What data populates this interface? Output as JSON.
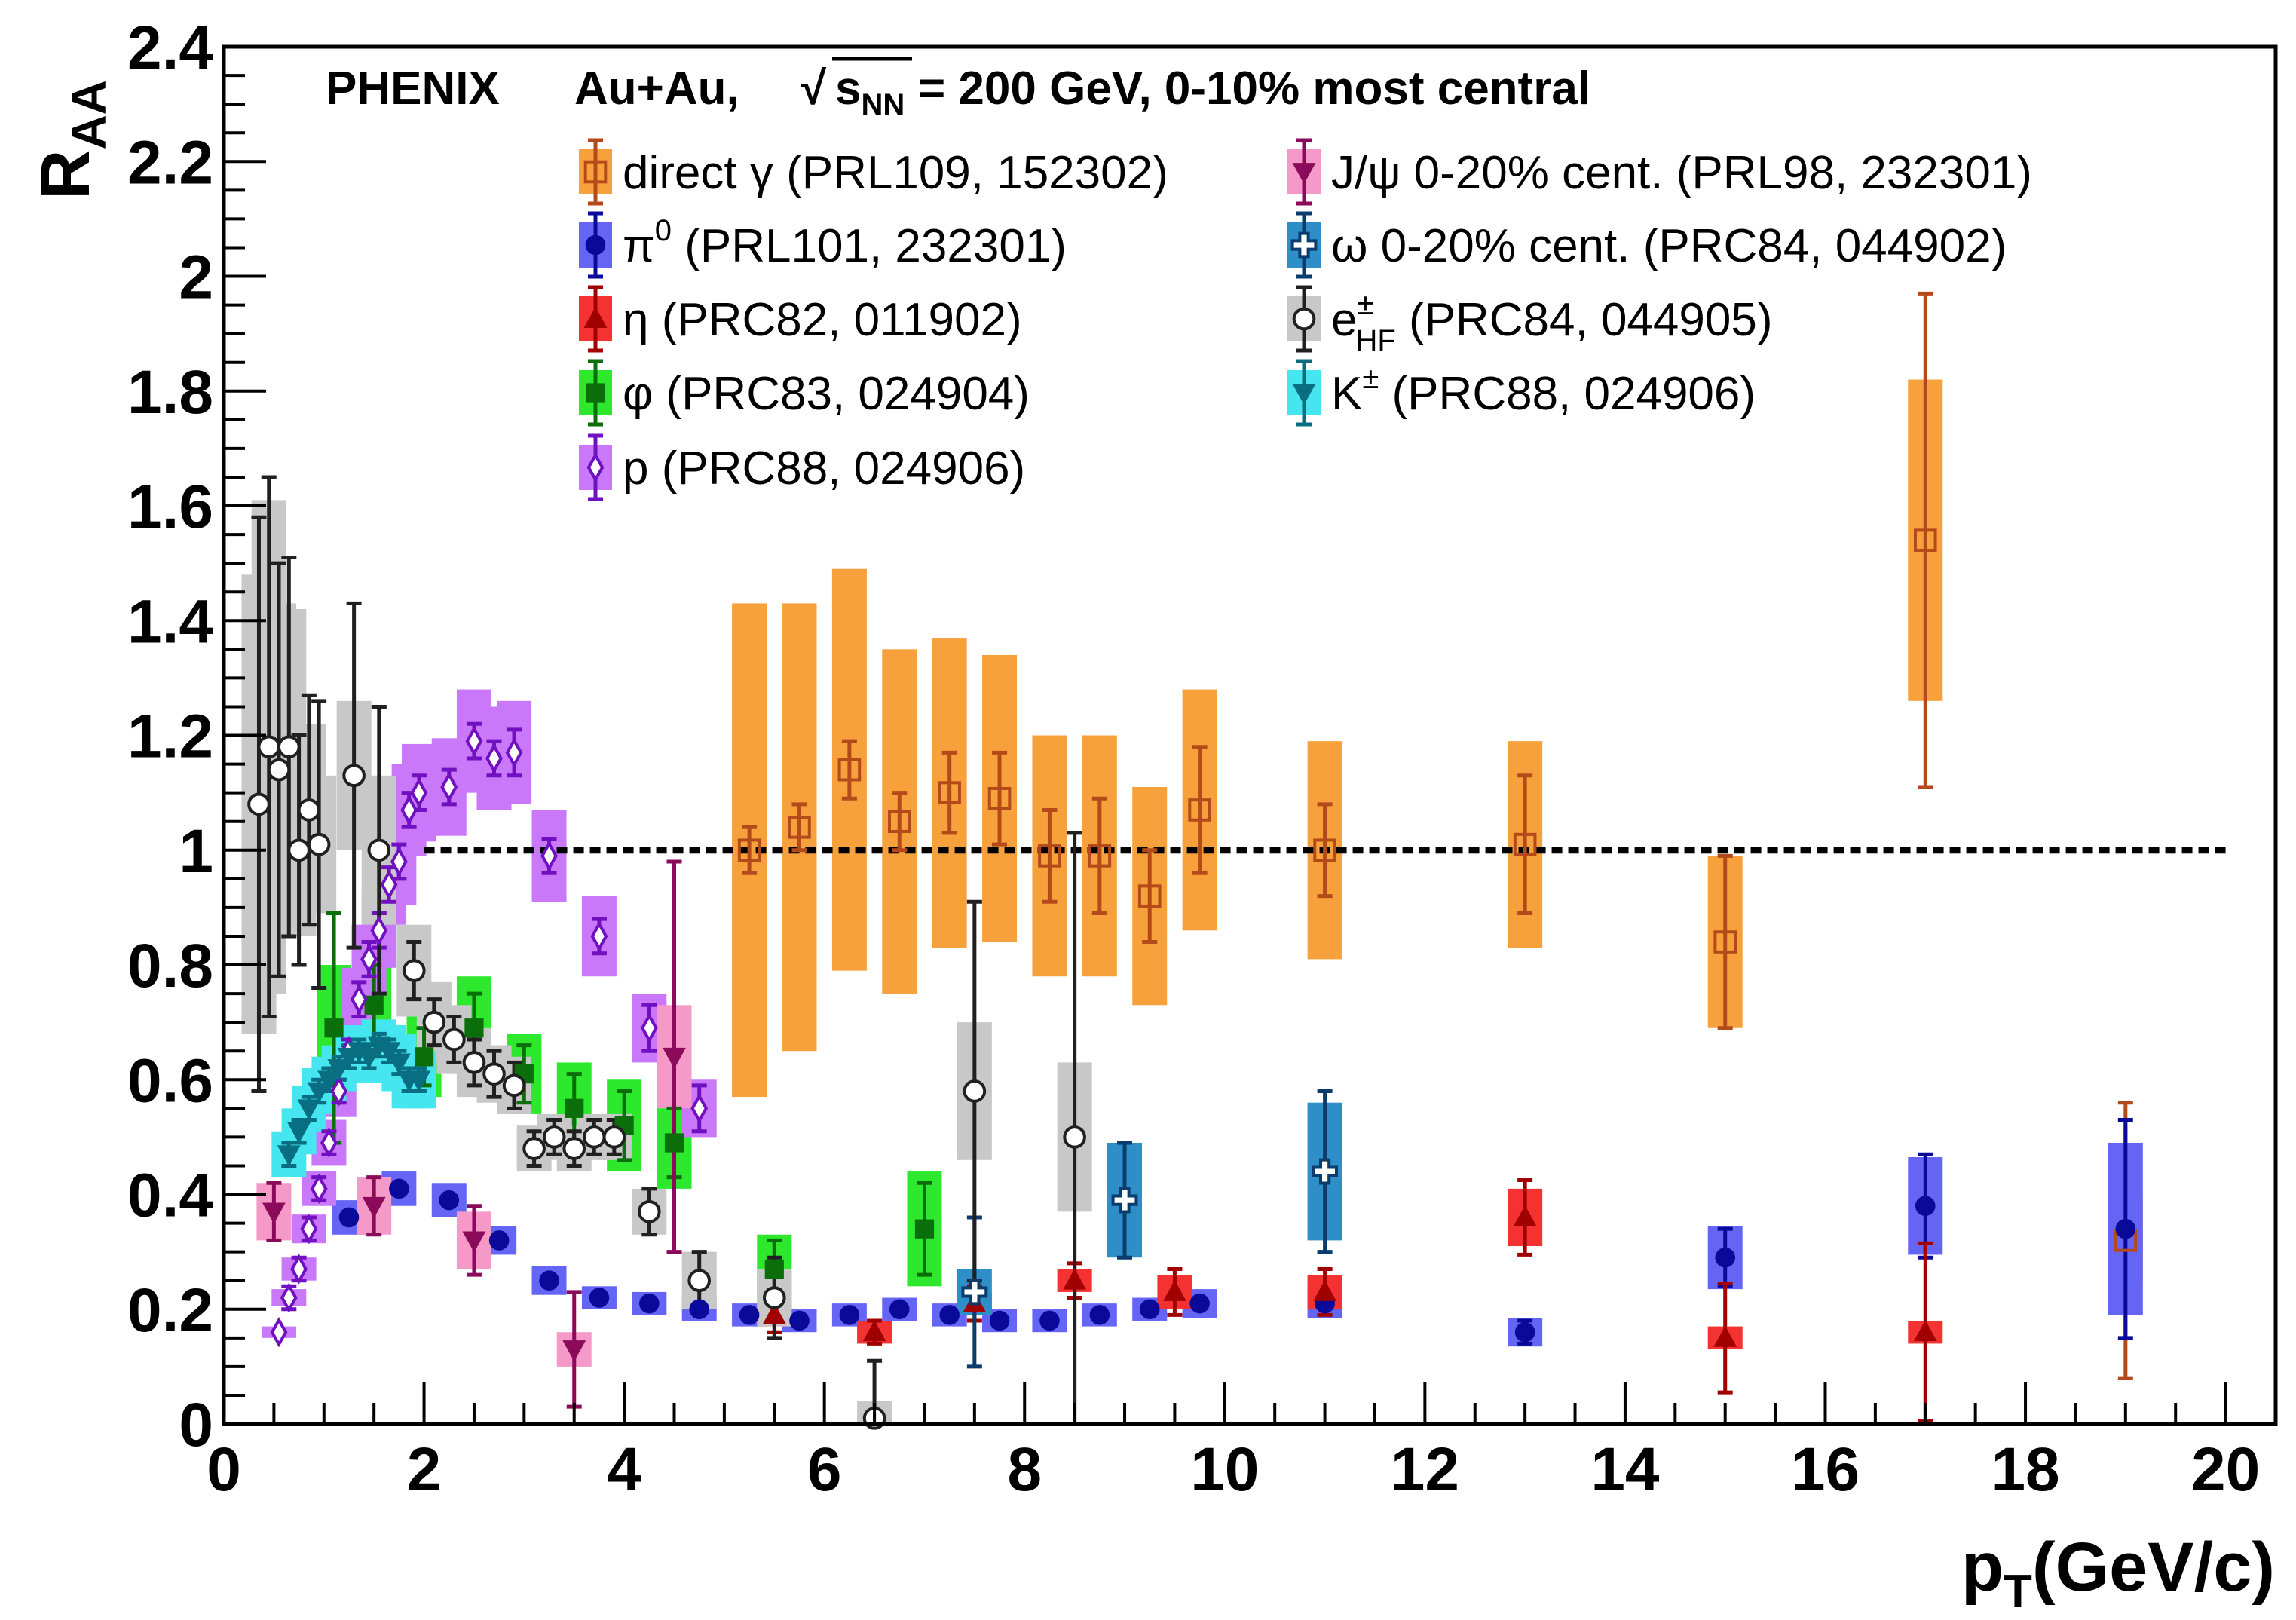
{
  "chart_data": {
    "type": "scatter",
    "header": {
      "experiment": "PHENIX",
      "system": "Au+Au,",
      "sqrt_symbol": "√",
      "s_label": "s",
      "s_subscript": "NN",
      "energy_and_centrality": "= 200 GeV, 0-10% most central"
    },
    "xlabel": {
      "main": "p",
      "sub": "T",
      "unit": "(GeV/c)"
    },
    "ylabel": {
      "main": "R",
      "sub": "AA"
    },
    "xlim": [
      0,
      20.5
    ],
    "ylim": [
      0,
      2.4
    ],
    "x_ticks": [
      "0",
      "2",
      "4",
      "6",
      "8",
      "10",
      "12",
      "14",
      "16",
      "18",
      "20"
    ],
    "y_ticks": [
      "0",
      "0.2",
      "0.4",
      "0.6",
      "0.8",
      "1",
      "1.2",
      "1.4",
      "1.6",
      "1.8",
      "2",
      "2.2",
      "2.4"
    ],
    "reference_line": {
      "y": 1.0,
      "x_range": [
        2.0,
        20.0
      ],
      "style": "dotted"
    },
    "series": [
      {
        "name": "direct γ",
        "legend_name": "direct",
        "legend_symbol": "γ",
        "legend_ref": "(PRL109, 152302)",
        "color": "#b44a1a",
        "sys_color": "#f7a13c",
        "marker": "open-square",
        "points": [
          {
            "x": 5.25,
            "y": 1.0,
            "err": 0.04,
            "sys": 0.43
          },
          {
            "x": 5.75,
            "y": 1.04,
            "err": 0.04,
            "sys": 0.39
          },
          {
            "x": 6.25,
            "y": 1.14,
            "err": 0.05,
            "sys": 0.35
          },
          {
            "x": 6.75,
            "y": 1.05,
            "err": 0.05,
            "sys": 0.3
          },
          {
            "x": 7.25,
            "y": 1.1,
            "err": 0.07,
            "sys": 0.27
          },
          {
            "x": 7.75,
            "y": 1.09,
            "err": 0.08,
            "sys": 0.25
          },
          {
            "x": 8.25,
            "y": 0.99,
            "err": 0.08,
            "sys": 0.21
          },
          {
            "x": 8.75,
            "y": 0.99,
            "err": 0.1,
            "sys": 0.21
          },
          {
            "x": 9.25,
            "y": 0.92,
            "err": 0.08,
            "sys": 0.19
          },
          {
            "x": 9.75,
            "y": 1.07,
            "err": 0.11,
            "sys": 0.21
          },
          {
            "x": 11.0,
            "y": 1.0,
            "err": 0.08,
            "sys": 0.19
          },
          {
            "x": 13.0,
            "y": 1.01,
            "err": 0.12,
            "sys": 0.18
          },
          {
            "x": 15.0,
            "y": 0.84,
            "err": 0.15,
            "sys": 0.15
          },
          {
            "x": 17.0,
            "y": 1.54,
            "err": 0.43,
            "sys": 0.28
          },
          {
            "x": 19.0,
            "y": 0.32,
            "err": 0.24,
            "sys": 0.08
          }
        ]
      },
      {
        "name": "π0",
        "legend_name": "π",
        "legend_sup": "0",
        "legend_ref": "(PRL101, 232301)",
        "color": "#0a0a9a",
        "sys_color": "#6464f5",
        "marker": "filled-circle",
        "points": [
          {
            "x": 1.25,
            "y": 0.36,
            "err": 0.005,
            "sys": 0.03
          },
          {
            "x": 1.75,
            "y": 0.41,
            "err": 0.005,
            "sys": 0.03
          },
          {
            "x": 2.25,
            "y": 0.39,
            "err": 0.005,
            "sys": 0.03
          },
          {
            "x": 2.75,
            "y": 0.32,
            "err": 0.005,
            "sys": 0.025
          },
          {
            "x": 3.25,
            "y": 0.25,
            "err": 0.005,
            "sys": 0.025
          },
          {
            "x": 3.75,
            "y": 0.22,
            "err": 0.005,
            "sys": 0.02
          },
          {
            "x": 4.25,
            "y": 0.21,
            "err": 0.005,
            "sys": 0.02
          },
          {
            "x": 4.75,
            "y": 0.2,
            "err": 0.005,
            "sys": 0.02
          },
          {
            "x": 5.25,
            "y": 0.19,
            "err": 0.005,
            "sys": 0.02
          },
          {
            "x": 5.75,
            "y": 0.18,
            "err": 0.005,
            "sys": 0.02
          },
          {
            "x": 6.25,
            "y": 0.19,
            "err": 0.005,
            "sys": 0.02
          },
          {
            "x": 6.75,
            "y": 0.2,
            "err": 0.005,
            "sys": 0.02
          },
          {
            "x": 7.25,
            "y": 0.19,
            "err": 0.005,
            "sys": 0.02
          },
          {
            "x": 7.75,
            "y": 0.18,
            "err": 0.005,
            "sys": 0.02
          },
          {
            "x": 8.25,
            "y": 0.18,
            "err": 0.005,
            "sys": 0.02
          },
          {
            "x": 8.75,
            "y": 0.19,
            "err": 0.005,
            "sys": 0.02
          },
          {
            "x": 9.25,
            "y": 0.2,
            "err": 0.005,
            "sys": 0.02
          },
          {
            "x": 9.75,
            "y": 0.21,
            "err": 0.005,
            "sys": 0.025
          },
          {
            "x": 11.0,
            "y": 0.21,
            "err": 0.01,
            "sys": 0.025
          },
          {
            "x": 13.0,
            "y": 0.16,
            "err": 0.02,
            "sys": 0.025
          },
          {
            "x": 15.0,
            "y": 0.29,
            "err": 0.05,
            "sys": 0.055
          },
          {
            "x": 17.0,
            "y": 0.38,
            "err": 0.09,
            "sys": 0.085
          },
          {
            "x": 19.0,
            "y": 0.34,
            "err": 0.19,
            "sys": 0.15
          }
        ]
      },
      {
        "name": "η",
        "legend_name": "η",
        "legend_ref": "(PRC82, 011902)",
        "color": "#a00000",
        "sys_color": "#f53232",
        "marker": "filled-triangle-up",
        "points": [
          {
            "x": 5.5,
            "y": 0.19,
            "err": 0.03,
            "sys": 0.02
          },
          {
            "x": 6.5,
            "y": 0.16,
            "err": 0.02,
            "sys": 0.02
          },
          {
            "x": 7.5,
            "y": 0.21,
            "err": 0.03,
            "sys": 0.02
          },
          {
            "x": 8.5,
            "y": 0.25,
            "err": 0.03,
            "sys": 0.02
          },
          {
            "x": 9.5,
            "y": 0.23,
            "err": 0.04,
            "sys": 0.03
          },
          {
            "x": 11.0,
            "y": 0.23,
            "err": 0.04,
            "sys": 0.03
          },
          {
            "x": 13.0,
            "y": 0.36,
            "err": 0.065,
            "sys": 0.05
          },
          {
            "x": 15.0,
            "y": 0.15,
            "err": 0.095,
            "sys": 0.02
          },
          {
            "x": 17.0,
            "y": 0.16,
            "err": 0.155,
            "sys": 0.02
          }
        ]
      },
      {
        "name": "φ",
        "legend_name": "φ",
        "legend_ref": "(PRC83, 024904)",
        "color": "#0a6e0a",
        "sys_color": "#2de82d",
        "marker": "filled-square",
        "points": [
          {
            "x": 1.1,
            "y": 0.69,
            "err": 0.2,
            "sys": 0.11
          },
          {
            "x": 1.5,
            "y": 0.73,
            "err": 0.07,
            "sys": 0.09
          },
          {
            "x": 2.0,
            "y": 0.64,
            "err": 0.05,
            "sys": 0.07
          },
          {
            "x": 2.5,
            "y": 0.69,
            "err": 0.06,
            "sys": 0.09
          },
          {
            "x": 3.0,
            "y": 0.61,
            "err": 0.05,
            "sys": 0.07
          },
          {
            "x": 3.5,
            "y": 0.55,
            "err": 0.06,
            "sys": 0.08
          },
          {
            "x": 4.0,
            "y": 0.52,
            "err": 0.06,
            "sys": 0.08
          },
          {
            "x": 4.5,
            "y": 0.49,
            "err": 0.06,
            "sys": 0.08
          },
          {
            "x": 5.5,
            "y": 0.27,
            "err": 0.05,
            "sys": 0.06
          },
          {
            "x": 7.0,
            "y": 0.34,
            "err": 0.08,
            "sys": 0.1
          }
        ]
      },
      {
        "name": "p",
        "legend_name": "p",
        "legend_ref": "(PRC88, 024906)",
        "color": "#7010c0",
        "sys_color": "#c878f8",
        "marker": "open-diamond",
        "points": [
          {
            "x": 0.55,
            "y": 0.16,
            "err": 0.01,
            "sys": 0.01
          },
          {
            "x": 0.65,
            "y": 0.22,
            "err": 0.02,
            "sys": 0.015
          },
          {
            "x": 0.75,
            "y": 0.27,
            "err": 0.02,
            "sys": 0.02
          },
          {
            "x": 0.85,
            "y": 0.34,
            "err": 0.02,
            "sys": 0.025
          },
          {
            "x": 0.95,
            "y": 0.41,
            "err": 0.02,
            "sys": 0.03
          },
          {
            "x": 1.05,
            "y": 0.49,
            "err": 0.02,
            "sys": 0.04
          },
          {
            "x": 1.15,
            "y": 0.58,
            "err": 0.02,
            "sys": 0.045
          },
          {
            "x": 1.25,
            "y": 0.65,
            "err": 0.02,
            "sys": 0.05
          },
          {
            "x": 1.35,
            "y": 0.74,
            "err": 0.03,
            "sys": 0.055
          },
          {
            "x": 1.45,
            "y": 0.81,
            "err": 0.03,
            "sys": 0.06
          },
          {
            "x": 1.55,
            "y": 0.86,
            "err": 0.03,
            "sys": 0.065
          },
          {
            "x": 1.65,
            "y": 0.94,
            "err": 0.03,
            "sys": 0.07
          },
          {
            "x": 1.75,
            "y": 0.98,
            "err": 0.03,
            "sys": 0.075
          },
          {
            "x": 1.85,
            "y": 1.07,
            "err": 0.03,
            "sys": 0.08
          },
          {
            "x": 1.95,
            "y": 1.1,
            "err": 0.03,
            "sys": 0.085
          },
          {
            "x": 2.25,
            "y": 1.11,
            "err": 0.03,
            "sys": 0.085
          },
          {
            "x": 2.5,
            "y": 1.19,
            "err": 0.03,
            "sys": 0.09
          },
          {
            "x": 2.7,
            "y": 1.16,
            "err": 0.03,
            "sys": 0.09
          },
          {
            "x": 2.9,
            "y": 1.17,
            "err": 0.04,
            "sys": 0.09
          },
          {
            "x": 3.25,
            "y": 0.99,
            "err": 0.03,
            "sys": 0.08
          },
          {
            "x": 3.75,
            "y": 0.85,
            "err": 0.03,
            "sys": 0.07
          },
          {
            "x": 4.25,
            "y": 0.69,
            "err": 0.04,
            "sys": 0.06
          },
          {
            "x": 4.75,
            "y": 0.55,
            "err": 0.04,
            "sys": 0.05
          }
        ]
      },
      {
        "name": "J/ψ",
        "legend_name": "J/ψ 0-20% cent.",
        "legend_ref": "(PRL98, 232301)",
        "color": "#8c0a5a",
        "sys_color": "#f59ac8",
        "marker": "filled-triangle-down",
        "points": [
          {
            "x": 0.5,
            "y": 0.37,
            "err": 0.05,
            "sys": 0.05
          },
          {
            "x": 1.5,
            "y": 0.38,
            "err": 0.05,
            "sys": 0.05
          },
          {
            "x": 2.5,
            "y": 0.32,
            "err": 0.06,
            "sys": 0.05
          },
          {
            "x": 3.5,
            "y": 0.13,
            "err": 0.1,
            "sys": 0.03
          },
          {
            "x": 4.5,
            "y": 0.64,
            "err": 0.34,
            "sys": 0.09
          }
        ]
      },
      {
        "name": "ω",
        "legend_name": "ω 0-20% cent.",
        "legend_ref": "(PRC84, 044902)",
        "color": "#0a3c6e",
        "sys_color": "#2e8ec8",
        "marker": "open-cross",
        "points": [
          {
            "x": 7.5,
            "y": 0.23,
            "err": 0.13,
            "sys": 0.04
          },
          {
            "x": 9.0,
            "y": 0.39,
            "err": 0.1,
            "sys": 0.1
          },
          {
            "x": 11.0,
            "y": 0.44,
            "err": 0.14,
            "sys": 0.12
          }
        ]
      },
      {
        "name": "e± HF",
        "legend_name": "e",
        "legend_sup": "±",
        "legend_sub": "HF",
        "legend_ref": "(PRC84, 044905)",
        "color": "#202020",
        "sys_color": "#c8c8c8",
        "marker": "open-circle",
        "points": [
          {
            "x": 0.35,
            "y": 1.08,
            "err": 0.5,
            "sys": 0.4
          },
          {
            "x": 0.45,
            "y": 1.18,
            "err": 0.47,
            "sys": 0.43
          },
          {
            "x": 0.55,
            "y": 1.14,
            "err": 0.36,
            "sys": 0.29
          },
          {
            "x": 0.65,
            "y": 1.18,
            "err": 0.33,
            "sys": 0.24
          },
          {
            "x": 0.75,
            "y": 1.0,
            "err": 0.2,
            "sys": 0.15
          },
          {
            "x": 0.85,
            "y": 1.07,
            "err": 0.2,
            "sys": 0.15
          },
          {
            "x": 0.95,
            "y": 1.01,
            "err": 0.25,
            "sys": 0.12
          },
          {
            "x": 1.3,
            "y": 1.13,
            "err": 0.3,
            "sys": 0.13
          },
          {
            "x": 1.55,
            "y": 1.0,
            "err": 0.25,
            "sys": 0.13
          },
          {
            "x": 1.9,
            "y": 0.79,
            "err": 0.05,
            "sys": 0.08
          },
          {
            "x": 2.1,
            "y": 0.7,
            "err": 0.04,
            "sys": 0.07
          },
          {
            "x": 2.3,
            "y": 0.67,
            "err": 0.04,
            "sys": 0.06
          },
          {
            "x": 2.5,
            "y": 0.63,
            "err": 0.04,
            "sys": 0.06
          },
          {
            "x": 2.7,
            "y": 0.61,
            "err": 0.04,
            "sys": 0.05
          },
          {
            "x": 2.9,
            "y": 0.59,
            "err": 0.04,
            "sys": 0.05
          },
          {
            "x": 3.1,
            "y": 0.48,
            "err": 0.03,
            "sys": 0.04
          },
          {
            "x": 3.3,
            "y": 0.5,
            "err": 0.03,
            "sys": 0.04
          },
          {
            "x": 3.5,
            "y": 0.48,
            "err": 0.03,
            "sys": 0.04
          },
          {
            "x": 3.7,
            "y": 0.5,
            "err": 0.03,
            "sys": 0.04
          },
          {
            "x": 3.9,
            "y": 0.5,
            "err": 0.03,
            "sys": 0.04
          },
          {
            "x": 4.25,
            "y": 0.37,
            "err": 0.04,
            "sys": 0.04
          },
          {
            "x": 4.75,
            "y": 0.25,
            "err": 0.05,
            "sys": 0.05
          },
          {
            "x": 5.5,
            "y": 0.22,
            "err": 0.07,
            "sys": 0.05
          },
          {
            "x": 6.5,
            "y": 0.01,
            "err": 0.1,
            "sys": 0.03
          },
          {
            "x": 7.5,
            "y": 0.58,
            "err": 0.33,
            "sys": 0.12
          },
          {
            "x": 8.5,
            "y": 0.5,
            "err": 0.53,
            "sys": 0.13
          }
        ]
      },
      {
        "name": "K±",
        "legend_name": "K",
        "legend_sup": "±",
        "legend_ref": "(PRC88, 024906)",
        "color": "#0a6e82",
        "sys_color": "#46e6f0",
        "marker": "filled-triangle-down",
        "points": [
          {
            "x": 0.65,
            "y": 0.47,
            "err": 0.02,
            "sys": 0.04
          },
          {
            "x": 0.75,
            "y": 0.51,
            "err": 0.02,
            "sys": 0.04
          },
          {
            "x": 0.85,
            "y": 0.55,
            "err": 0.02,
            "sys": 0.04
          },
          {
            "x": 0.95,
            "y": 0.58,
            "err": 0.02,
            "sys": 0.04
          },
          {
            "x": 1.05,
            "y": 0.6,
            "err": 0.02,
            "sys": 0.04
          },
          {
            "x": 1.15,
            "y": 0.62,
            "err": 0.02,
            "sys": 0.04
          },
          {
            "x": 1.25,
            "y": 0.64,
            "err": 0.02,
            "sys": 0.045
          },
          {
            "x": 1.35,
            "y": 0.65,
            "err": 0.02,
            "sys": 0.045
          },
          {
            "x": 1.45,
            "y": 0.64,
            "err": 0.02,
            "sys": 0.045
          },
          {
            "x": 1.55,
            "y": 0.66,
            "err": 0.02,
            "sys": 0.045
          },
          {
            "x": 1.65,
            "y": 0.65,
            "err": 0.02,
            "sys": 0.045
          },
          {
            "x": 1.75,
            "y": 0.63,
            "err": 0.02,
            "sys": 0.05
          },
          {
            "x": 1.85,
            "y": 0.6,
            "err": 0.02,
            "sys": 0.05
          },
          {
            "x": 1.95,
            "y": 0.6,
            "err": 0.02,
            "sys": 0.05
          }
        ]
      }
    ]
  }
}
